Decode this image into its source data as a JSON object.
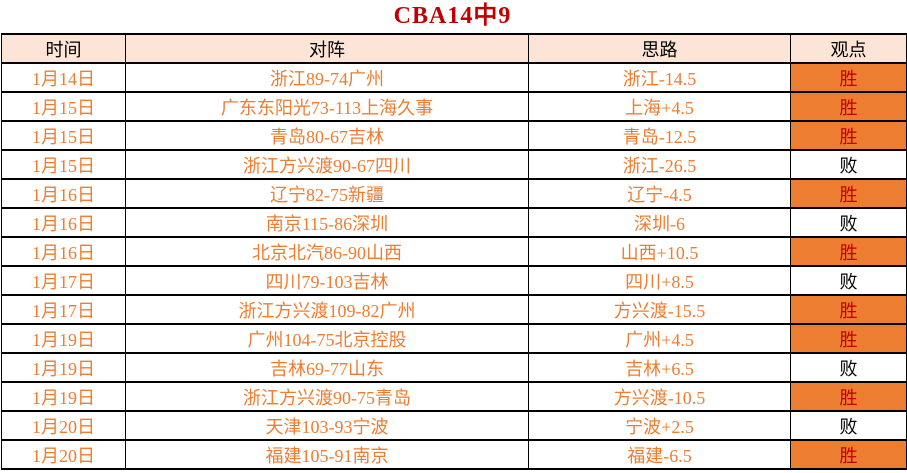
{
  "title": "CBA14中9",
  "colors": {
    "title_red": "#c00000",
    "header_bg": "#fce4d6",
    "orange_accent": "#ed7d31",
    "win_cell_bg": "#ed7d31",
    "win_text": "#c00000",
    "loss_text": "#000000",
    "grid_border": "#000000"
  },
  "result_labels": {
    "win": "胜",
    "loss": "败"
  },
  "table": {
    "headers": [
      "时间",
      "对阵",
      "思路",
      "观点"
    ],
    "rows": [
      {
        "date": "1月14日",
        "match": "浙江89-74广州",
        "pick": "浙江-14.5",
        "result": "胜"
      },
      {
        "date": "1月15日",
        "match": "广东东阳光73-113上海久事",
        "pick": "上海+4.5",
        "result": "胜"
      },
      {
        "date": "1月15日",
        "match": "青岛80-67吉林",
        "pick": "青岛-12.5",
        "result": "胜"
      },
      {
        "date": "1月15日",
        "match": "浙江方兴渡90-67四川",
        "pick": "浙江-26.5",
        "result": "败"
      },
      {
        "date": "1月16日",
        "match": "辽宁82-75新疆",
        "pick": "辽宁-4.5",
        "result": "胜"
      },
      {
        "date": "1月16日",
        "match": "南京115-86深圳",
        "pick": "深圳-6",
        "result": "败"
      },
      {
        "date": "1月16日",
        "match": "北京北汽86-90山西",
        "pick": "山西+10.5",
        "result": "胜"
      },
      {
        "date": "1月17日",
        "match": "四川79-103吉林",
        "pick": "四川+8.5",
        "result": "败"
      },
      {
        "date": "1月17日",
        "match": "浙江方兴渡109-82广州",
        "pick": "方兴渡-15.5",
        "result": "胜"
      },
      {
        "date": "1月19日",
        "match": "广州104-75北京控股",
        "pick": "广州+4.5",
        "result": "胜"
      },
      {
        "date": "1月19日",
        "match": "吉林69-77山东",
        "pick": "吉林+6.5",
        "result": "败"
      },
      {
        "date": "1月19日",
        "match": "浙江方兴渡90-75青岛",
        "pick": "方兴渡-10.5",
        "result": "胜"
      },
      {
        "date": "1月20日",
        "match": "天津103-93宁波",
        "pick": "宁波+2.5",
        "result": "败"
      },
      {
        "date": "1月20日",
        "match": "福建105-91南京",
        "pick": "福建-6.5",
        "result": "胜"
      }
    ]
  }
}
